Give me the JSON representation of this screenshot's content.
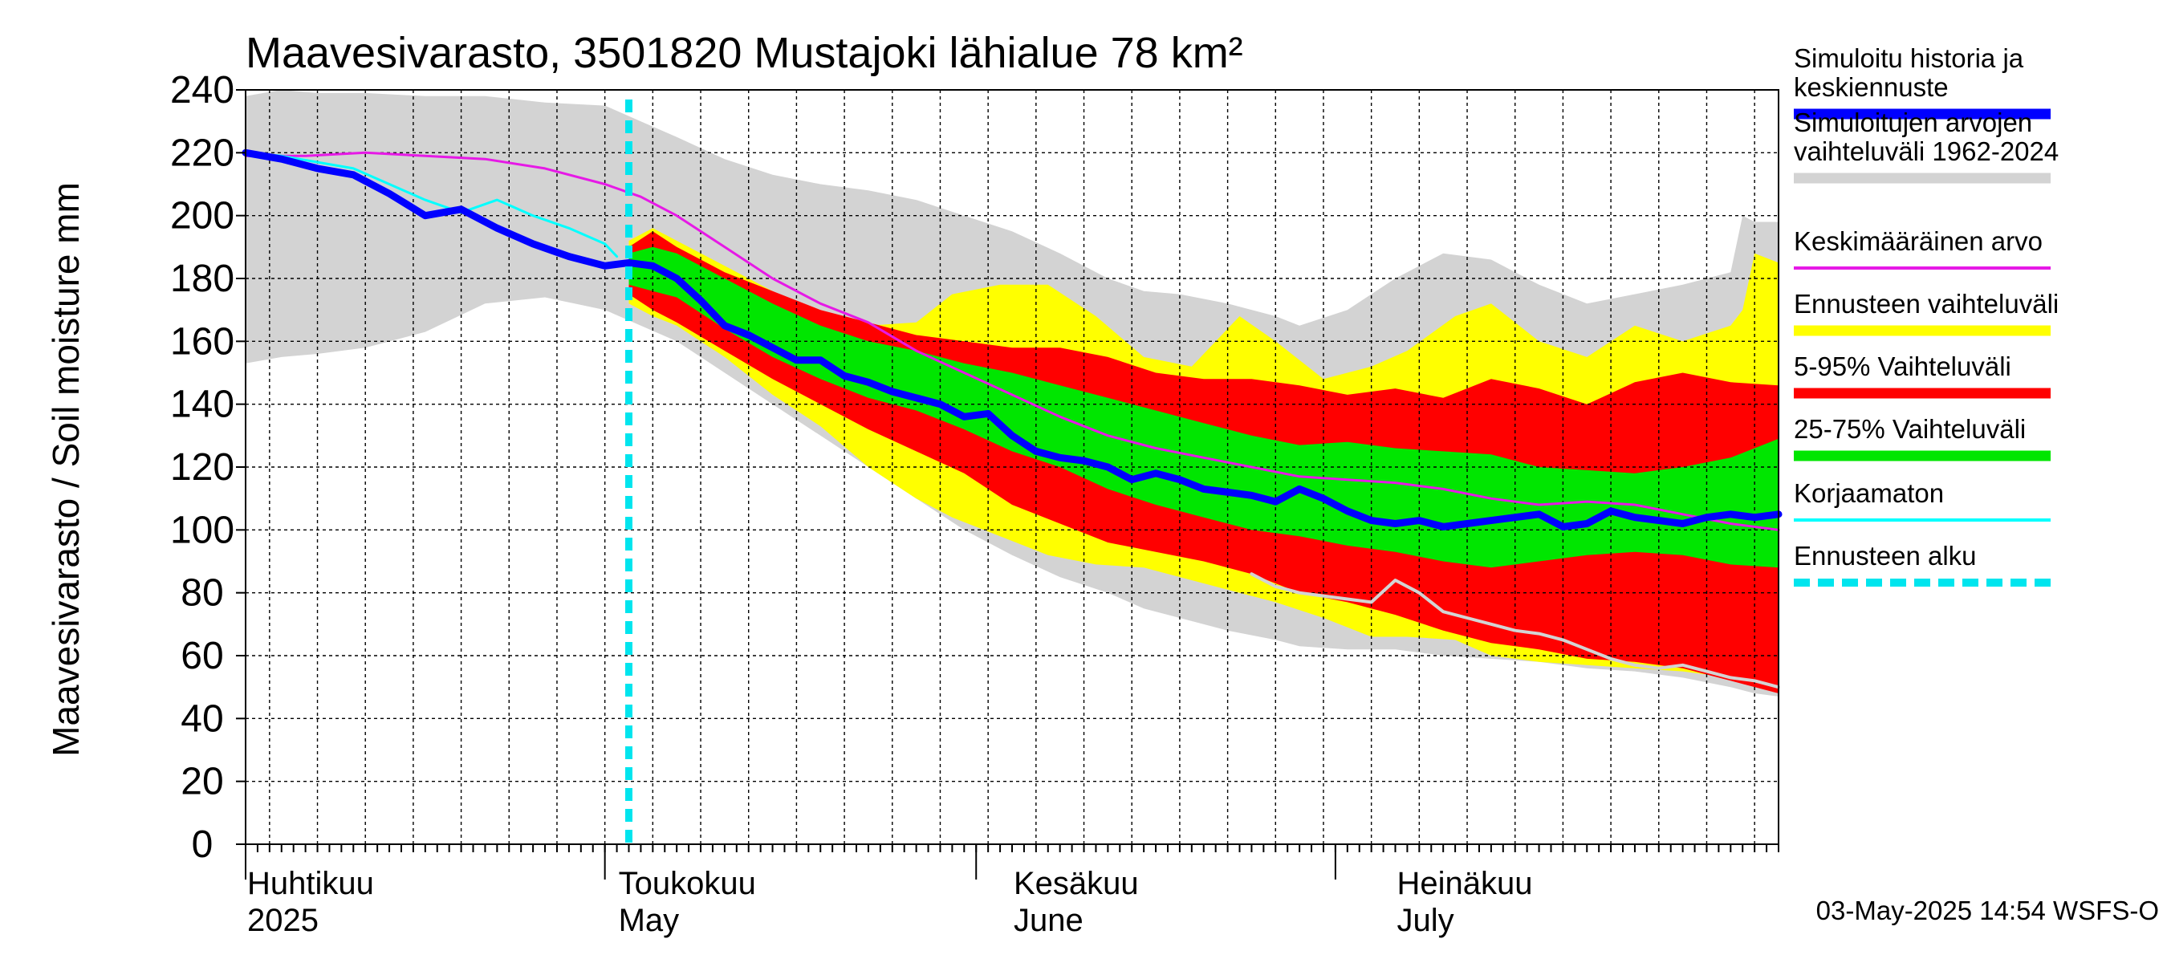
{
  "chart_data": {
    "type": "area",
    "title": "Maavesivarasto, 3501820 Mustajoki lähialue 78 km²",
    "ylabel": "Maavesivarasto / Soil moisture   mm",
    "ylim": [
      0,
      240
    ],
    "yticks": [
      0,
      20,
      40,
      60,
      80,
      100,
      120,
      140,
      160,
      180,
      200,
      220,
      240
    ],
    "xlim_day": [
      0,
      128
    ],
    "forecast_start_day": 32,
    "months": [
      {
        "fi": "Huhtikuu",
        "en": "2025",
        "start_day": 0,
        "label_day": 0
      },
      {
        "fi": "Toukokuu",
        "en": "May",
        "start_day": 30,
        "label_day": 31
      },
      {
        "fi": "Kesäkuu",
        "en": "June",
        "start_day": 61,
        "label_day": 64
      },
      {
        "fi": "Heinäkuu",
        "en": "July",
        "start_day": 91,
        "label_day": 96
      }
    ],
    "series": [
      {
        "name": "Simuloitujen arvojen vaihteluväli 1962-2024",
        "kind": "band",
        "color": "#d3d3d3",
        "x": [
          0,
          3,
          6,
          10,
          15,
          20,
          25,
          30,
          33,
          36,
          40,
          44,
          48,
          52,
          56,
          60,
          64,
          68,
          72,
          75,
          78,
          82,
          86,
          88,
          92,
          96,
          100,
          104,
          108,
          112,
          116,
          120,
          124,
          125,
          126,
          128
        ],
        "upper": [
          238,
          240,
          239,
          239,
          238,
          238,
          236,
          235,
          230,
          225,
          218,
          213,
          210,
          208,
          205,
          200,
          195,
          188,
          180,
          176,
          175,
          172,
          168,
          165,
          170,
          180,
          188,
          186,
          178,
          172,
          175,
          178,
          182,
          200,
          198,
          198
        ],
        "lower": [
          153,
          155,
          156,
          158,
          163,
          172,
          174,
          170,
          165,
          160,
          150,
          140,
          130,
          120,
          110,
          100,
          92,
          85,
          80,
          75,
          72,
          68,
          65,
          63,
          62,
          62,
          60,
          59,
          58,
          56,
          55,
          53,
          50,
          49,
          48,
          47
        ]
      },
      {
        "name": "Ennusteen vaihteluväli",
        "kind": "band",
        "color": "#ffff00",
        "x": [
          32,
          34,
          36,
          40,
          44,
          48,
          52,
          56,
          59,
          63,
          67,
          71,
          75,
          79,
          83,
          86,
          90,
          94,
          97,
          101,
          104,
          108,
          112,
          116,
          120,
          124,
          125,
          126,
          128
        ],
        "upper": [
          192,
          196,
          192,
          184,
          176,
          168,
          165,
          166,
          175,
          178,
          178,
          168,
          155,
          152,
          168,
          160,
          148,
          152,
          157,
          168,
          172,
          160,
          155,
          165,
          160,
          165,
          170,
          188,
          185
        ],
        "lower": [
          172,
          168,
          165,
          155,
          143,
          133,
          120,
          110,
          104,
          98,
          92,
          89,
          88,
          84,
          80,
          77,
          72,
          66,
          66,
          65,
          60,
          58,
          57,
          56,
          55,
          53,
          52,
          51,
          49
        ]
      },
      {
        "name": "5-95% Vaihteluväli",
        "kind": "band",
        "color": "#ff0000",
        "x": [
          32,
          34,
          36,
          40,
          44,
          48,
          52,
          56,
          60,
          64,
          68,
          72,
          76,
          80,
          84,
          88,
          92,
          96,
          100,
          104,
          108,
          112,
          116,
          120,
          124,
          128
        ],
        "upper": [
          190,
          195,
          190,
          182,
          176,
          170,
          166,
          162,
          160,
          158,
          158,
          155,
          150,
          148,
          148,
          146,
          143,
          145,
          142,
          148,
          145,
          140,
          147,
          150,
          147,
          146
        ],
        "lower": [
          175,
          170,
          166,
          157,
          148,
          140,
          132,
          125,
          118,
          108,
          102,
          96,
          93,
          90,
          86,
          80,
          77,
          73,
          68,
          64,
          62,
          59,
          58,
          56,
          52,
          48
        ]
      },
      {
        "name": "25-75% Vaihteluväli",
        "kind": "band",
        "color": "#00e600",
        "x": [
          32,
          34,
          36,
          40,
          44,
          48,
          52,
          56,
          60,
          64,
          68,
          72,
          76,
          80,
          84,
          88,
          92,
          96,
          100,
          104,
          108,
          112,
          116,
          120,
          124,
          128
        ],
        "upper": [
          188,
          190,
          188,
          180,
          172,
          165,
          160,
          157,
          153,
          150,
          146,
          142,
          138,
          134,
          130,
          127,
          128,
          126,
          125,
          124,
          120,
          119,
          118,
          120,
          123,
          129
        ],
        "lower": [
          178,
          176,
          174,
          164,
          155,
          148,
          142,
          138,
          132,
          125,
          120,
          113,
          108,
          104,
          100,
          98,
          95,
          93,
          90,
          88,
          90,
          92,
          93,
          92,
          89,
          88
        ]
      },
      {
        "name": "Keskimääräinen arvo",
        "kind": "line",
        "color": "#e619e6",
        "width": 3,
        "x": [
          0,
          5,
          10,
          15,
          20,
          25,
          30,
          33,
          36,
          40,
          44,
          48,
          52,
          56,
          60,
          64,
          68,
          72,
          76,
          80,
          84,
          88,
          92,
          96,
          100,
          104,
          108,
          112,
          116,
          120,
          124,
          128
        ],
        "y": [
          219,
          219,
          220,
          219,
          218,
          215,
          210,
          206,
          200,
          190,
          180,
          172,
          166,
          157,
          150,
          143,
          136,
          130,
          126,
          123,
          120,
          117,
          116,
          115,
          113,
          110,
          108,
          109,
          108,
          105,
          102,
          100
        ]
      },
      {
        "name": "Lowest history line",
        "kind": "line",
        "color": "#d3d3d3",
        "width": 4,
        "x": [
          84,
          86,
          88,
          90,
          92,
          94,
          96,
          98,
          100,
          102,
          104,
          106,
          108,
          110,
          112,
          114,
          116,
          118,
          120,
          122,
          124,
          126,
          128
        ],
        "y": [
          86,
          82,
          80,
          79,
          78,
          77,
          84,
          80,
          74,
          72,
          70,
          68,
          67,
          65,
          62,
          59,
          57,
          56,
          57,
          55,
          53,
          52,
          50
        ]
      },
      {
        "name": "Korjaamaton",
        "kind": "line",
        "color": "#00ffff",
        "width": 3,
        "x": [
          0,
          3,
          6,
          9,
          12,
          15,
          18,
          21,
          24,
          27,
          30,
          31
        ],
        "y": [
          220,
          219,
          217,
          215,
          210,
          205,
          201,
          205,
          200,
          196,
          191,
          187
        ]
      },
      {
        "name": "Simuloitu historia ja keskiennuste",
        "kind": "line",
        "color": "#0000ff",
        "width": 9,
        "x": [
          0,
          3,
          6,
          9,
          12,
          15,
          18,
          21,
          24,
          27,
          30,
          32,
          34,
          36,
          38,
          40,
          42,
          44,
          46,
          48,
          50,
          52,
          54,
          56,
          58,
          60,
          62,
          64,
          66,
          68,
          70,
          72,
          74,
          76,
          78,
          80,
          82,
          84,
          86,
          88,
          90,
          92,
          94,
          96,
          98,
          100,
          102,
          104,
          106,
          108,
          110,
          112,
          114,
          116,
          118,
          120,
          122,
          124,
          126,
          128
        ],
        "y": [
          220,
          218,
          215,
          213,
          207,
          200,
          202,
          196,
          191,
          187,
          184,
          185,
          184,
          180,
          173,
          165,
          162,
          158,
          154,
          154,
          149,
          147,
          144,
          142,
          140,
          136,
          137,
          130,
          125,
          123,
          122,
          120,
          116,
          118,
          116,
          113,
          112,
          111,
          109,
          113,
          110,
          106,
          103,
          102,
          103,
          101,
          102,
          103,
          104,
          105,
          101,
          102,
          106,
          104,
          103,
          102,
          104,
          105,
          104,
          105
        ]
      }
    ],
    "legend": [
      {
        "label": "Simuloitu historia ja\nkeskiennuste",
        "color": "#0000ff",
        "style": "thick"
      },
      {
        "label": "Simuloitujen arvojen\nvaihteluväli 1962-2024",
        "color": "#d3d3d3",
        "style": "thick"
      },
      {
        "label": "Keskimääräinen arvo",
        "color": "#e619e6",
        "style": "thin"
      },
      {
        "label": "Ennusteen vaihteluväli",
        "color": "#ffff00",
        "style": "thick"
      },
      {
        "label": "5-95% Vaihteluväli",
        "color": "#ff0000",
        "style": "thick"
      },
      {
        "label": "25-75% Vaihteluväli",
        "color": "#00e600",
        "style": "thick"
      },
      {
        "label": "Korjaamaton",
        "color": "#00ffff",
        "style": "thin"
      },
      {
        "label": "Ennusteen alku",
        "color": "#00e5ee",
        "style": "dashed"
      }
    ],
    "footer": "03-May-2025 14:54 WSFS-O"
  }
}
